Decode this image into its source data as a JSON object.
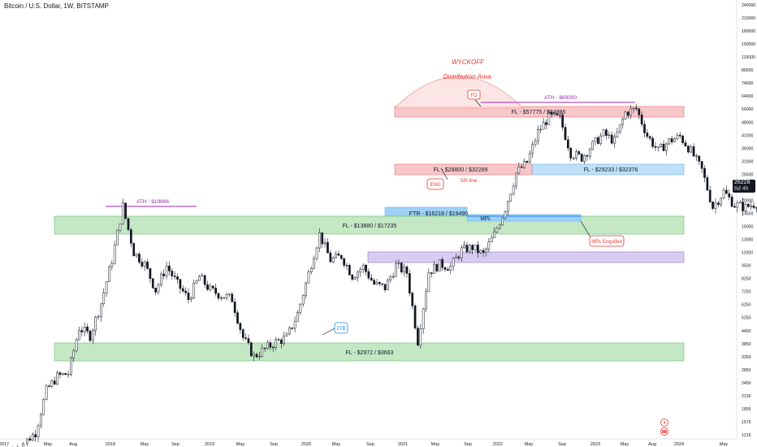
{
  "header": {
    "title": "Bitcoin / U.S. Dollar, 1W, BITSTAMP"
  },
  "last_price": {
    "value": "26228",
    "sub": "6d 4h"
  },
  "chart_data": {
    "type": "candlestick",
    "title": "Bitcoin / U.S. Dollar, 1W, BITSTAMP",
    "scale": "log",
    "x_ticks": [
      "2017",
      "May",
      "Aug",
      "2018",
      "May",
      "Sep",
      "2019",
      "May",
      "Sep",
      "2020",
      "May",
      "Sep",
      "2021",
      "May",
      "Sep",
      "2022",
      "May",
      "Sep",
      "2023",
      "May",
      "Aug",
      "2024",
      "May"
    ],
    "y_ticks": [
      "240000",
      "210000",
      "180000",
      "150000",
      "115000",
      "86500",
      "74000",
      "64000",
      "56000",
      "48000",
      "41000",
      "36000",
      "31000",
      "26500",
      "23000",
      "20000",
      "17500",
      "15000",
      "13000",
      "11000",
      "9500",
      "8250",
      "7250",
      "6250",
      "5250",
      "4450",
      "3850",
      "3350",
      "2850",
      "2450",
      "2130",
      "1855",
      "1575",
      "1215"
    ],
    "price_path": [
      [
        "2017-01",
        1000
      ],
      [
        "2017-03",
        1100
      ],
      [
        "2017-04",
        1250
      ],
      [
        "2017-05",
        2100
      ],
      [
        "2017-06",
        2500
      ],
      [
        "2017-07",
        2600
      ],
      [
        "2017-08",
        4500
      ],
      [
        "2017-09",
        4100
      ],
      [
        "2017-10",
        6000
      ],
      [
        "2017-11",
        10000
      ],
      [
        "2017-12",
        19666
      ],
      [
        "2018-01",
        11000
      ],
      [
        "2018-02",
        9500
      ],
      [
        "2018-03",
        7000
      ],
      [
        "2018-04",
        9300
      ],
      [
        "2018-05",
        7500
      ],
      [
        "2018-06",
        6300
      ],
      [
        "2018-07",
        8200
      ],
      [
        "2018-08",
        7000
      ],
      [
        "2018-09",
        6600
      ],
      [
        "2018-10",
        6300
      ],
      [
        "2018-11",
        4000
      ],
      [
        "2018-12",
        3200
      ],
      [
        "2019-01",
        3500
      ],
      [
        "2019-02",
        3800
      ],
      [
        "2019-03",
        4000
      ],
      [
        "2019-04",
        5300
      ],
      [
        "2019-05",
        8500
      ],
      [
        "2019-06",
        13800
      ],
      [
        "2019-07",
        10000
      ],
      [
        "2019-08",
        10500
      ],
      [
        "2019-09",
        8300
      ],
      [
        "2019-10",
        9200
      ],
      [
        "2019-11",
        7500
      ],
      [
        "2019-12",
        7200
      ],
      [
        "2020-01",
        9300
      ],
      [
        "2020-02",
        8600
      ],
      [
        "2020-03",
        3850
      ],
      [
        "2020-04",
        8700
      ],
      [
        "2020-05",
        9500
      ],
      [
        "2020-06",
        9200
      ],
      [
        "2020-07",
        11300
      ],
      [
        "2020-08",
        11700
      ],
      [
        "2020-09",
        10700
      ],
      [
        "2020-10",
        13800
      ],
      [
        "2020-11",
        19200
      ],
      [
        "2020-12",
        29000
      ],
      [
        "2021-01",
        33000
      ],
      [
        "2021-02",
        48000
      ],
      [
        "2021-03",
        58000
      ],
      [
        "2021-04",
        57000
      ],
      [
        "2021-05",
        37000
      ],
      [
        "2021-06",
        35000
      ],
      [
        "2021-07",
        41000
      ],
      [
        "2021-08",
        47000
      ],
      [
        "2021-09",
        43000
      ],
      [
        "2021-10",
        61000
      ],
      [
        "2021-11",
        64000
      ],
      [
        "2021-12",
        46000
      ],
      [
        "2022-01",
        38000
      ],
      [
        "2022-02",
        43000
      ],
      [
        "2022-03",
        45500
      ],
      [
        "2022-04",
        38000
      ],
      [
        "2022-05",
        30000
      ],
      [
        "2022-06",
        19500
      ],
      [
        "2022-07",
        23300
      ],
      [
        "2022-08",
        20000
      ],
      [
        "2022-09",
        19400
      ],
      [
        "2022-10",
        20500
      ],
      [
        "2022-11",
        17000
      ],
      [
        "2022-12",
        16500
      ],
      [
        "2023-01",
        23100
      ],
      [
        "2023-02",
        23500
      ],
      [
        "2023-03",
        28500
      ],
      [
        "2023-04",
        29300
      ],
      [
        "2023-05",
        27200
      ],
      [
        "2023-06",
        30500
      ],
      [
        "2023-07",
        29200
      ],
      [
        "2023-08",
        26000
      ],
      [
        "2023-09",
        26228
      ]
    ],
    "zones": [
      {
        "label": "FL - $57775 / $64895",
        "low": 57775,
        "high": 64895,
        "color": "#f7c7c9"
      },
      {
        "label": "FL - $29233 / $32376",
        "low": 29233,
        "high": 32376,
        "color": "#bfe0f7"
      },
      {
        "label": "FL - $28800 / $32289",
        "low": 28800,
        "high": 32289,
        "color": "#f7c7c9"
      },
      {
        "label": "FTR - $16218 / $19490",
        "low": 16218,
        "high": 19490,
        "color": "#9ed1f5"
      },
      {
        "label": "FL - $13880 / $17235",
        "low": 13880,
        "high": 17235,
        "color": "#c4e7c4"
      },
      {
        "label": "FL - $2972 / $3663",
        "low": 2972,
        "high": 3663,
        "color": "#c4e7c4"
      },
      {
        "label": "",
        "low": 9700,
        "high": 10700,
        "color": "#d7cdf1"
      }
    ],
    "lines": [
      {
        "label": "ATH - $19666",
        "value": 19666,
        "color": "#9c27b0"
      },
      {
        "label": "ATH - $69000",
        "value": 69000,
        "color": "#9c27b0"
      },
      {
        "label": "MPL",
        "value": 17600,
        "color": "#1e88e5"
      }
    ],
    "annotations": {
      "wyckoff": "WYCKOFF",
      "distribution": "Distribution Area",
      "fo": "FO",
      "eng": "ENG",
      "sr_line": "SR line",
      "mpl_engulfed": "MPL Engulfed",
      "two_tb": "2TB"
    }
  }
}
